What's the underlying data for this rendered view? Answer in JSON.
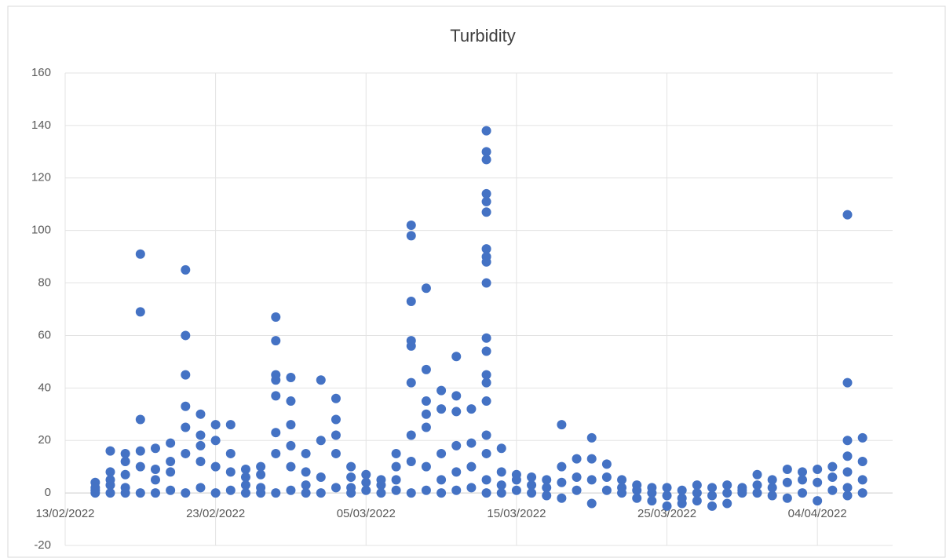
{
  "chart_data": {
    "type": "scatter",
    "title": "Turbidity",
    "series": [
      {
        "name": "Turbidity",
        "color": "#4472c4",
        "x": [
          "15/02/2022",
          "15/02/2022",
          "15/02/2022",
          "15/02/2022",
          "16/02/2022",
          "16/02/2022",
          "16/02/2022",
          "16/02/2022",
          "16/02/2022",
          "17/02/2022",
          "17/02/2022",
          "17/02/2022",
          "17/02/2022",
          "17/02/2022",
          "18/02/2022",
          "18/02/2022",
          "18/02/2022",
          "18/02/2022",
          "18/02/2022",
          "18/02/2022",
          "19/02/2022",
          "19/02/2022",
          "19/02/2022",
          "19/02/2022",
          "20/02/2022",
          "20/02/2022",
          "20/02/2022",
          "20/02/2022",
          "21/02/2022",
          "21/02/2022",
          "21/02/2022",
          "21/02/2022",
          "21/02/2022",
          "21/02/2022",
          "21/02/2022",
          "22/02/2022",
          "22/02/2022",
          "22/02/2022",
          "22/02/2022",
          "22/02/2022",
          "23/02/2022",
          "23/02/2022",
          "23/02/2022",
          "23/02/2022",
          "24/02/2022",
          "24/02/2022",
          "24/02/2022",
          "24/02/2022",
          "25/02/2022",
          "25/02/2022",
          "25/02/2022",
          "25/02/2022",
          "26/02/2022",
          "26/02/2022",
          "26/02/2022",
          "26/02/2022",
          "27/02/2022",
          "27/02/2022",
          "27/02/2022",
          "27/02/2022",
          "27/02/2022",
          "27/02/2022",
          "27/02/2022",
          "27/02/2022",
          "28/02/2022",
          "28/02/2022",
          "28/02/2022",
          "28/02/2022",
          "28/02/2022",
          "28/02/2022",
          "01/03/2022",
          "01/03/2022",
          "01/03/2022",
          "01/03/2022",
          "02/03/2022",
          "02/03/2022",
          "02/03/2022",
          "02/03/2022",
          "03/03/2022",
          "03/03/2022",
          "03/03/2022",
          "03/03/2022",
          "03/03/2022",
          "04/03/2022",
          "04/03/2022",
          "04/03/2022",
          "04/03/2022",
          "05/03/2022",
          "05/03/2022",
          "05/03/2022",
          "06/03/2022",
          "06/03/2022",
          "06/03/2022",
          "07/03/2022",
          "07/03/2022",
          "07/03/2022",
          "07/03/2022",
          "08/03/2022",
          "08/03/2022",
          "08/03/2022",
          "08/03/2022",
          "08/03/2022",
          "08/03/2022",
          "08/03/2022",
          "08/03/2022",
          "08/03/2022",
          "09/03/2022",
          "09/03/2022",
          "09/03/2022",
          "09/03/2022",
          "09/03/2022",
          "09/03/2022",
          "09/03/2022",
          "10/03/2022",
          "10/03/2022",
          "10/03/2022",
          "10/03/2022",
          "10/03/2022",
          "11/03/2022",
          "11/03/2022",
          "11/03/2022",
          "11/03/2022",
          "11/03/2022",
          "11/03/2022",
          "12/03/2022",
          "12/03/2022",
          "12/03/2022",
          "12/03/2022",
          "13/03/2022",
          "13/03/2022",
          "13/03/2022",
          "13/03/2022",
          "13/03/2022",
          "13/03/2022",
          "13/03/2022",
          "13/03/2022",
          "13/03/2022",
          "13/03/2022",
          "13/03/2022",
          "13/03/2022",
          "13/03/2022",
          "13/03/2022",
          "13/03/2022",
          "13/03/2022",
          "13/03/2022",
          "13/03/2022",
          "13/03/2022",
          "14/03/2022",
          "14/03/2022",
          "14/03/2022",
          "14/03/2022",
          "15/03/2022",
          "15/03/2022",
          "15/03/2022",
          "16/03/2022",
          "16/03/2022",
          "16/03/2022",
          "17/03/2022",
          "17/03/2022",
          "17/03/2022",
          "18/03/2022",
          "18/03/2022",
          "18/03/2022",
          "18/03/2022",
          "19/03/2022",
          "19/03/2022",
          "19/03/2022",
          "20/03/2022",
          "20/03/2022",
          "20/03/2022",
          "20/03/2022",
          "21/03/2022",
          "21/03/2022",
          "21/03/2022",
          "22/03/2022",
          "22/03/2022",
          "22/03/2022",
          "23/03/2022",
          "23/03/2022",
          "23/03/2022",
          "24/03/2022",
          "24/03/2022",
          "24/03/2022",
          "25/03/2022",
          "25/03/2022",
          "25/03/2022",
          "26/03/2022",
          "26/03/2022",
          "26/03/2022",
          "27/03/2022",
          "27/03/2022",
          "27/03/2022",
          "28/03/2022",
          "28/03/2022",
          "28/03/2022",
          "29/03/2022",
          "29/03/2022",
          "29/03/2022",
          "30/03/2022",
          "30/03/2022",
          "30/03/2022",
          "31/03/2022",
          "31/03/2022",
          "31/03/2022",
          "01/04/2022",
          "01/04/2022",
          "01/04/2022",
          "02/04/2022",
          "02/04/2022",
          "02/04/2022",
          "03/04/2022",
          "03/04/2022",
          "03/04/2022",
          "04/04/2022",
          "04/04/2022",
          "04/04/2022",
          "05/04/2022",
          "05/04/2022",
          "05/04/2022",
          "06/04/2022",
          "06/04/2022",
          "06/04/2022",
          "06/04/2022",
          "06/04/2022",
          "06/04/2022",
          "06/04/2022",
          "07/04/2022",
          "07/04/2022",
          "07/04/2022",
          "07/04/2022"
        ],
        "values": [
          2,
          4,
          0,
          1,
          5,
          8,
          16,
          0,
          3,
          12,
          7,
          15,
          0,
          2,
          91,
          69,
          28,
          16,
          10,
          0,
          9,
          17,
          5,
          0,
          8,
          19,
          12,
          1,
          85,
          60,
          45,
          33,
          25,
          15,
          0,
          30,
          22,
          18,
          12,
          2,
          26,
          20,
          10,
          0,
          26,
          15,
          8,
          1,
          9,
          6,
          3,
          0,
          10,
          7,
          2,
          0,
          67,
          58,
          45,
          43,
          37,
          23,
          15,
          0,
          44,
          35,
          26,
          18,
          10,
          1,
          15,
          8,
          3,
          0,
          43,
          20,
          6,
          0,
          36,
          28,
          22,
          15,
          2,
          10,
          6,
          2,
          0,
          7,
          4,
          1,
          5,
          3,
          0,
          15,
          10,
          5,
          1,
          102,
          98,
          73,
          58,
          56,
          42,
          22,
          12,
          0,
          78,
          47,
          35,
          30,
          25,
          10,
          1,
          39,
          32,
          15,
          5,
          0,
          52,
          37,
          31,
          18,
          8,
          1,
          32,
          19,
          10,
          2,
          138,
          130,
          127,
          114,
          111,
          107,
          93,
          90,
          88,
          80,
          59,
          54,
          45,
          42,
          35,
          22,
          15,
          5,
          0,
          17,
          8,
          3,
          0,
          7,
          5,
          1,
          6,
          3,
          0,
          5,
          2,
          -1,
          26,
          10,
          4,
          -2,
          13,
          6,
          1,
          21,
          13,
          5,
          -4,
          11,
          6,
          1,
          5,
          2,
          0,
          3,
          1,
          -2,
          2,
          0,
          -3,
          2,
          -1,
          -5,
          1,
          -2,
          -4,
          3,
          0,
          -3,
          2,
          -1,
          -5,
          3,
          0,
          -4,
          2,
          0,
          1,
          7,
          3,
          0,
          5,
          2,
          -1,
          9,
          4,
          -2,
          8,
          5,
          0,
          9,
          4,
          -3,
          10,
          6,
          1,
          106,
          42,
          20,
          14,
          8,
          2,
          -1,
          21,
          12,
          5,
          0
        ]
      }
    ],
    "xlim": [
      "13/02/2022",
      "09/04/2022"
    ],
    "xticks": [
      "13/02/2022",
      "23/02/2022",
      "05/03/2022",
      "15/03/2022",
      "25/03/2022",
      "04/04/2022"
    ],
    "ylim": [
      -20,
      160
    ],
    "yticks": [
      -20,
      0,
      20,
      40,
      60,
      80,
      100,
      120,
      140,
      160
    ],
    "grid": true
  }
}
